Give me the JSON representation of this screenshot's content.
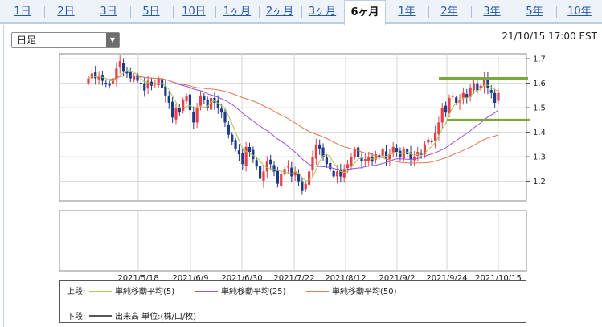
{
  "tabs": [
    {
      "label": "1日",
      "active": false
    },
    {
      "label": "2日",
      "active": false
    },
    {
      "label": "3日",
      "active": false
    },
    {
      "label": "5日",
      "active": false
    },
    {
      "label": "10日",
      "active": false
    },
    {
      "label": "1ヶ月",
      "active": false
    },
    {
      "label": "2ヶ月",
      "active": false
    },
    {
      "label": "3ヶ月",
      "active": false
    },
    {
      "label": "6ヶ月",
      "active": true
    },
    {
      "label": "1年",
      "active": false
    },
    {
      "label": "2年",
      "active": false
    },
    {
      "label": "3年",
      "active": false
    },
    {
      "label": "5年",
      "active": false
    },
    {
      "label": "10年",
      "active": false
    }
  ],
  "period_select": {
    "value": "日足",
    "icon": "chevron-down-icon"
  },
  "timestamp": "21/10/15 17:00 EST",
  "legend": {
    "upper_label": "上段:",
    "lower_label": "下段:",
    "items": [
      {
        "label": "単純移動平均(5)",
        "color": "#a8c84a"
      },
      {
        "label": "単純移動平均(25)",
        "color": "#9a4ee0"
      },
      {
        "label": "単純移動平均(50)",
        "color": "#e07850"
      }
    ],
    "volume_label": "出来高 単位:(株/口/枚)",
    "volume_color": "#555555"
  },
  "colors": {
    "up_candle": "#e8404a",
    "down_candle": "#1e3a8a",
    "support_line": "#7aa83a",
    "grid": "#d6d6d6"
  },
  "chart_data": {
    "type": "candlestick",
    "x_tick_labels": [
      "2021/5/18",
      "2021/6/9",
      "2021/6/30",
      "2021/7/22",
      "2021/8/12",
      "2021/9/2",
      "2021/9/24",
      "2021/10/15"
    ],
    "y_ticks": [
      1.2,
      1.3,
      1.4,
      1.5,
      1.6,
      1.7
    ],
    "ylim": [
      1.12,
      1.72
    ],
    "dates": [
      "4/30",
      "5/3",
      "5/4",
      "5/5",
      "5/6",
      "5/7",
      "5/10",
      "5/11",
      "5/12",
      "5/13",
      "5/14",
      "5/17",
      "5/18",
      "5/19",
      "5/20",
      "5/21",
      "5/24",
      "5/25",
      "5/26",
      "5/27",
      "5/28",
      "6/1",
      "6/2",
      "6/3",
      "6/4",
      "6/7",
      "6/8",
      "6/9",
      "6/10",
      "6/11",
      "6/14",
      "6/15",
      "6/16",
      "6/17",
      "6/18",
      "6/21",
      "6/22",
      "6/23",
      "6/24",
      "6/25",
      "6/28",
      "6/29",
      "6/30",
      "7/1",
      "7/2",
      "7/6",
      "7/7",
      "7/8",
      "7/9",
      "7/12",
      "7/13",
      "7/14",
      "7/15",
      "7/16",
      "7/19",
      "7/20",
      "7/21",
      "7/22",
      "7/23",
      "7/26",
      "7/27",
      "7/28",
      "7/29",
      "7/30",
      "8/2",
      "8/3",
      "8/4",
      "8/5",
      "8/6",
      "8/9",
      "8/10",
      "8/11",
      "8/12",
      "8/13",
      "8/16",
      "8/17",
      "8/18",
      "8/19",
      "8/20",
      "8/23",
      "8/24",
      "8/25",
      "8/26",
      "8/27",
      "8/30",
      "8/31",
      "9/1",
      "9/2",
      "9/3",
      "9/7",
      "9/8",
      "9/9",
      "9/10",
      "9/13",
      "9/14",
      "9/15",
      "9/16",
      "9/17",
      "9/20",
      "9/21",
      "9/22",
      "9/23",
      "9/24",
      "9/27",
      "9/28",
      "9/29",
      "9/30",
      "10/1",
      "10/4",
      "10/5",
      "10/6",
      "10/7",
      "10/8",
      "10/11",
      "10/12",
      "10/13",
      "10/14",
      "10/15"
    ],
    "close": [
      1.62,
      1.64,
      1.62,
      1.63,
      1.61,
      1.6,
      1.59,
      1.62,
      1.66,
      1.69,
      1.65,
      1.64,
      1.62,
      1.63,
      1.61,
      1.6,
      1.57,
      1.61,
      1.59,
      1.6,
      1.62,
      1.58,
      1.55,
      1.52,
      1.46,
      1.5,
      1.48,
      1.53,
      1.55,
      1.49,
      1.44,
      1.5,
      1.55,
      1.53,
      1.5,
      1.54,
      1.52,
      1.5,
      1.48,
      1.44,
      1.39,
      1.36,
      1.33,
      1.31,
      1.27,
      1.34,
      1.32,
      1.29,
      1.26,
      1.21,
      1.24,
      1.28,
      1.27,
      1.24,
      1.19,
      1.23,
      1.25,
      1.26,
      1.22,
      1.24,
      1.2,
      1.16,
      1.19,
      1.24,
      1.3,
      1.35,
      1.33,
      1.3,
      1.27,
      1.25,
      1.22,
      1.24,
      1.22,
      1.25,
      1.27,
      1.3,
      1.33,
      1.3,
      1.28,
      1.29,
      1.3,
      1.28,
      1.31,
      1.3,
      1.33,
      1.29,
      1.31,
      1.34,
      1.32,
      1.3,
      1.33,
      1.31,
      1.29,
      1.3,
      1.32,
      1.31,
      1.35,
      1.37,
      1.36,
      1.4,
      1.44,
      1.5,
      1.48,
      1.54,
      1.55,
      1.52,
      1.53,
      1.56,
      1.54,
      1.58,
      1.6,
      1.57,
      1.59,
      1.62,
      1.58,
      1.56,
      1.52,
      1.56
    ],
    "upper_hlines": [
      1.62,
      1.45
    ],
    "series": [
      {
        "name": "単純移動平均(5)",
        "color": "#a8c84a"
      },
      {
        "name": "単純移動平均(25)",
        "color": "#9a4ee0"
      },
      {
        "name": "単純移動平均(50)",
        "color": "#e07850"
      }
    ],
    "grid": true
  }
}
